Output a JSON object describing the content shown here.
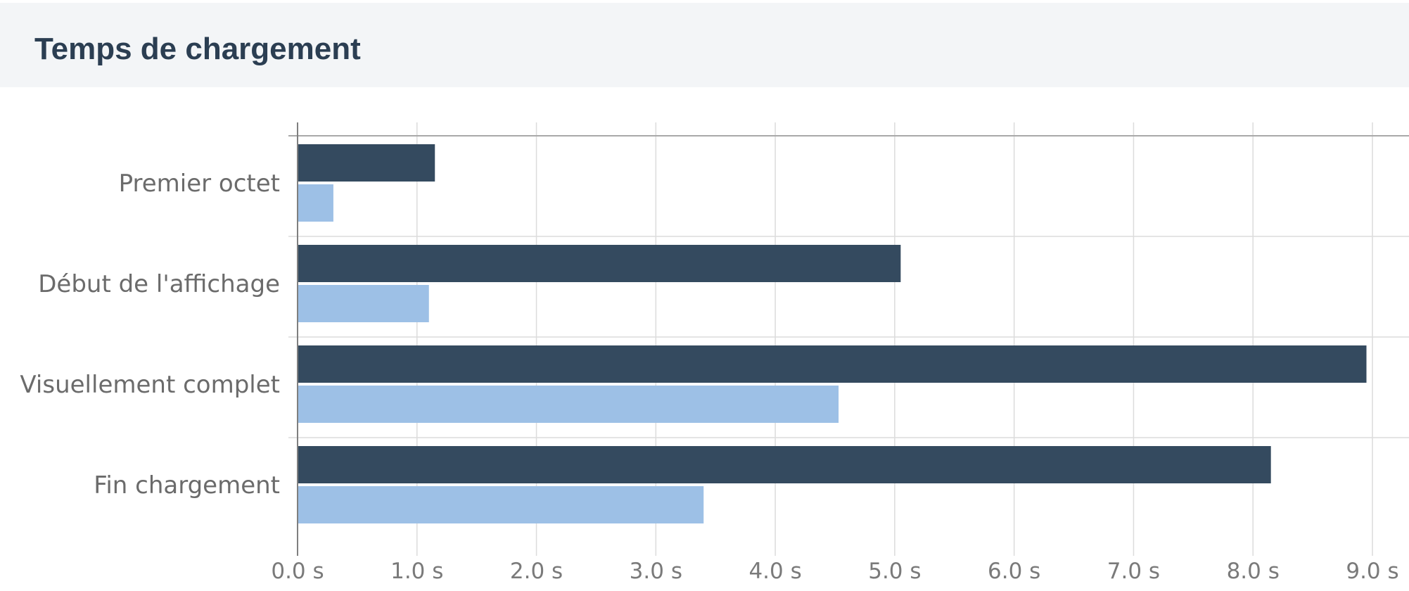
{
  "header": {
    "title": "Temps de chargement"
  },
  "chart_data": {
    "type": "bar",
    "orientation": "horizontal",
    "categories": [
      "Premier octet",
      "Début de l'affichage",
      "Visuellement complet",
      "Fin chargement"
    ],
    "series": [
      {
        "values": [
          1.15,
          5.05,
          8.95,
          8.15
        ],
        "color": "#344a5f"
      },
      {
        "values": [
          0.3,
          1.1,
          4.53,
          3.4
        ],
        "color": "#9dc0e6"
      }
    ],
    "xlim": [
      0,
      9
    ],
    "xticks": [
      {
        "value": 0,
        "label": "0.0 s"
      },
      {
        "value": 1,
        "label": "1.0 s"
      },
      {
        "value": 2,
        "label": "2.0 s"
      },
      {
        "value": 3,
        "label": "3.0 s"
      },
      {
        "value": 4,
        "label": "4.0 s"
      },
      {
        "value": 5,
        "label": "5.0 s"
      },
      {
        "value": 6,
        "label": "6.0 s"
      },
      {
        "value": 7,
        "label": "7.0 s"
      },
      {
        "value": 8,
        "label": "8.0 s"
      },
      {
        "value": 9,
        "label": "9.0 s"
      }
    ],
    "grid": true,
    "legend": "none"
  }
}
